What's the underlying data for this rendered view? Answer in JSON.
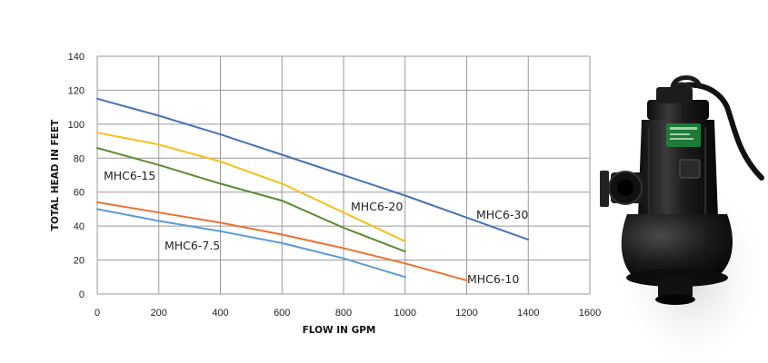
{
  "chart_data": {
    "type": "line",
    "xlabel": "FLOW IN GPM",
    "ylabel": "TOTAL HEAD IN FEET",
    "xlim": [
      0,
      1600
    ],
    "ylim": [
      0,
      140
    ],
    "xticks": [
      0,
      200,
      400,
      600,
      800,
      1000,
      1200,
      1400,
      1600
    ],
    "yticks": [
      0,
      20,
      40,
      60,
      80,
      100,
      120,
      140
    ],
    "grid": true,
    "legend": "inline labels",
    "series": [
      {
        "name": "MHC6-30",
        "color": "#4a72b8",
        "x": [
          0,
          200,
          400,
          600,
          800,
          1000,
          1200,
          1400
        ],
        "y": [
          115,
          105,
          94,
          82,
          70,
          58,
          45,
          32
        ]
      },
      {
        "name": "MHC6-20",
        "color": "#f2c21b",
        "x": [
          0,
          200,
          400,
          600,
          800,
          1000
        ],
        "y": [
          95,
          88,
          78,
          65,
          48,
          31
        ]
      },
      {
        "name": "MHC6-15",
        "color": "#5a8a32",
        "x": [
          0,
          200,
          400,
          600,
          800,
          1000
        ],
        "y": [
          86,
          76,
          65,
          55,
          39,
          25
        ]
      },
      {
        "name": "MHC6-10",
        "color": "#ec7130",
        "x": [
          0,
          200,
          400,
          600,
          800,
          1000,
          1200
        ],
        "y": [
          54,
          48,
          42,
          35,
          27,
          18,
          8
        ]
      },
      {
        "name": "MHC6-7.5",
        "color": "#5a9bd5",
        "x": [
          0,
          200,
          400,
          600,
          800,
          1000
        ],
        "y": [
          50,
          43,
          37,
          30,
          21,
          10
        ]
      }
    ]
  },
  "product_image": {
    "icon": "submersible-pump-image",
    "body_color": "#1a1a1a",
    "badge_color": "#1f7a3a"
  }
}
